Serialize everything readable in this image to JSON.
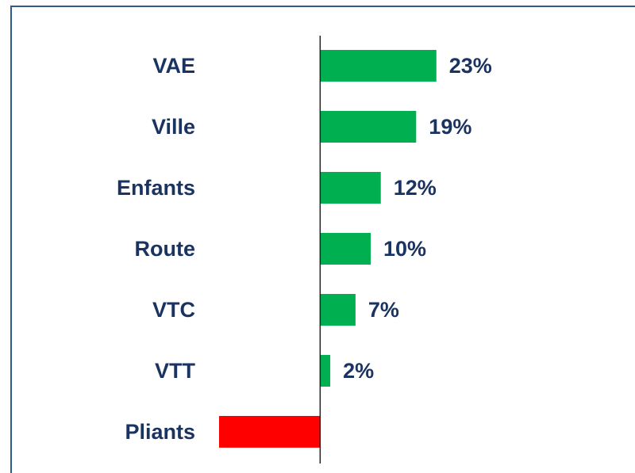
{
  "chart_data": {
    "type": "barh",
    "categories": [
      "VAE",
      "Ville",
      "Enfants",
      "Route",
      "VTC",
      "VTT",
      "Pliants"
    ],
    "values": [
      23,
      19,
      12,
      10,
      7,
      2,
      -20
    ],
    "value_labels": [
      "23%",
      "19%",
      "12%",
      "10%",
      "7%",
      "2%",
      null
    ],
    "positive_color": "#00b050",
    "negative_color": "#ff0000",
    "xlim": [
      -20,
      40
    ]
  }
}
